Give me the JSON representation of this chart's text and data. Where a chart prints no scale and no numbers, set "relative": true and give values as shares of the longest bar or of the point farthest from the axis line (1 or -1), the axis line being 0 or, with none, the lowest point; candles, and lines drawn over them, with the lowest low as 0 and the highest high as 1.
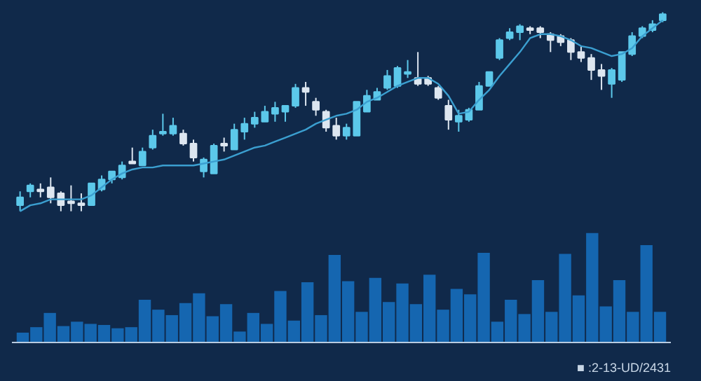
{
  "chart_data": [
    {
      "type": "candlestick",
      "relative": true,
      "categories": [
        null,
        null,
        null,
        null,
        null,
        null,
        null,
        null,
        null,
        null,
        null,
        null,
        null,
        null,
        null,
        null,
        null,
        null,
        null,
        null,
        null,
        null,
        null,
        null,
        null,
        null,
        null,
        null,
        null,
        null,
        null,
        null,
        null,
        null,
        null,
        null,
        null,
        null,
        null,
        null,
        null,
        null,
        null,
        null,
        null,
        null,
        null,
        null,
        null,
        null,
        null,
        null,
        null,
        null,
        null,
        null,
        null,
        null,
        null,
        null,
        null,
        null,
        null,
        null
      ],
      "ohlc": [
        [
          0.03,
          0.1,
          0.0,
          0.07
        ],
        [
          0.1,
          0.14,
          0.07,
          0.13
        ],
        [
          0.11,
          0.14,
          0.07,
          0.1
        ],
        [
          0.12,
          0.17,
          0.04,
          0.07
        ],
        [
          0.09,
          0.1,
          0.0,
          0.03
        ],
        [
          0.05,
          0.13,
          0.0,
          0.04
        ],
        [
          0.04,
          0.09,
          0.0,
          0.03
        ],
        [
          0.03,
          0.14,
          0.03,
          0.14
        ],
        [
          0.11,
          0.18,
          0.1,
          0.16
        ],
        [
          0.16,
          0.2,
          0.14,
          0.2
        ],
        [
          0.17,
          0.25,
          0.16,
          0.23
        ],
        [
          0.25,
          0.32,
          0.24,
          0.24
        ],
        [
          0.23,
          0.32,
          0.23,
          0.3
        ],
        [
          0.32,
          0.41,
          0.31,
          0.38
        ],
        [
          0.39,
          0.49,
          0.38,
          0.4
        ],
        [
          0.39,
          0.47,
          0.38,
          0.43
        ],
        [
          0.39,
          0.41,
          0.33,
          0.34
        ],
        [
          0.34,
          0.36,
          0.25,
          0.27
        ],
        [
          0.2,
          0.27,
          0.17,
          0.26
        ],
        [
          0.19,
          0.34,
          0.19,
          0.33
        ],
        [
          0.34,
          0.37,
          0.3,
          0.33
        ],
        [
          0.31,
          0.44,
          0.31,
          0.41
        ],
        [
          0.4,
          0.47,
          0.36,
          0.44
        ],
        [
          0.44,
          0.5,
          0.42,
          0.47
        ],
        [
          0.45,
          0.53,
          0.45,
          0.5
        ],
        [
          0.49,
          0.55,
          0.45,
          0.52
        ],
        [
          0.5,
          0.53,
          0.45,
          0.53
        ],
        [
          0.53,
          0.64,
          0.52,
          0.62
        ],
        [
          0.62,
          0.65,
          0.53,
          0.6
        ],
        [
          0.55,
          0.57,
          0.48,
          0.51
        ],
        [
          0.5,
          0.51,
          0.4,
          0.42
        ],
        [
          0.43,
          0.47,
          0.36,
          0.38
        ],
        [
          0.38,
          0.44,
          0.36,
          0.42
        ],
        [
          0.38,
          0.55,
          0.38,
          0.55
        ],
        [
          0.5,
          0.61,
          0.5,
          0.58
        ],
        [
          0.56,
          0.62,
          0.56,
          0.6
        ],
        [
          0.62,
          0.71,
          0.61,
          0.68
        ],
        [
          0.63,
          0.73,
          0.62,
          0.72
        ],
        [
          0.69,
          0.76,
          0.67,
          0.7
        ],
        [
          0.67,
          0.8,
          0.63,
          0.64
        ],
        [
          0.67,
          0.68,
          0.63,
          0.64
        ],
        [
          0.62,
          0.63,
          0.56,
          0.57
        ],
        [
          0.53,
          0.56,
          0.41,
          0.46
        ],
        [
          0.45,
          0.51,
          0.4,
          0.48
        ],
        [
          0.46,
          0.52,
          0.45,
          0.51
        ],
        [
          0.51,
          0.65,
          0.51,
          0.63
        ],
        [
          0.63,
          0.7,
          0.63,
          0.7
        ],
        [
          0.77,
          0.87,
          0.76,
          0.86
        ],
        [
          0.87,
          0.92,
          0.86,
          0.9
        ],
        [
          0.9,
          0.94,
          0.86,
          0.93
        ],
        [
          0.92,
          0.93,
          0.89,
          0.91
        ],
        [
          0.92,
          0.93,
          0.87,
          0.9
        ],
        [
          0.89,
          0.9,
          0.8,
          0.86
        ],
        [
          0.88,
          0.89,
          0.83,
          0.85
        ],
        [
          0.86,
          0.87,
          0.76,
          0.8
        ],
        [
          0.8,
          0.83,
          0.75,
          0.77
        ],
        [
          0.77,
          0.79,
          0.66,
          0.71
        ],
        [
          0.71,
          0.74,
          0.61,
          0.68
        ],
        [
          0.64,
          0.72,
          0.57,
          0.71
        ],
        [
          0.66,
          0.8,
          0.65,
          0.8
        ],
        [
          0.79,
          0.9,
          0.78,
          0.88
        ],
        [
          0.88,
          0.93,
          0.87,
          0.92
        ],
        [
          0.91,
          0.96,
          0.9,
          0.94
        ],
        [
          0.96,
          1.0,
          0.95,
          0.99
        ]
      ],
      "colors": [
        "#5cc8ea",
        "#5cc8ea",
        "#dde6f0",
        "#dde6f0",
        "#dde6f0",
        "#dde6f0",
        "#dde6f0",
        "#5cc8ea",
        "#5cc8ea",
        "#5cc8ea",
        "#5cc8ea",
        "#dde6f0",
        "#5cc8ea",
        "#5cc8ea",
        "#5cc8ea",
        "#5cc8ea",
        "#dde6f0",
        "#dde6f0",
        "#5cc8ea",
        "#5cc8ea",
        "#dde6f0",
        "#5cc8ea",
        "#5cc8ea",
        "#5cc8ea",
        "#5cc8ea",
        "#5cc8ea",
        "#5cc8ea",
        "#5cc8ea",
        "#dde6f0",
        "#dde6f0",
        "#dde6f0",
        "#dde6f0",
        "#5cc8ea",
        "#5cc8ea",
        "#5cc8ea",
        "#5cc8ea",
        "#5cc8ea",
        "#5cc8ea",
        "#5cc8ea",
        "#dde6f0",
        "#dde6f0",
        "#dde6f0",
        "#dde6f0",
        "#5cc8ea",
        "#5cc8ea",
        "#5cc8ea",
        "#5cc8ea",
        "#5cc8ea",
        "#5cc8ea",
        "#5cc8ea",
        "#dde6f0",
        "#dde6f0",
        "#dde6f0",
        "#dde6f0",
        "#dde6f0",
        "#dde6f0",
        "#dde6f0",
        "#dde6f0",
        "#5cc8ea",
        "#5cc8ea",
        "#5cc8ea",
        "#5cc8ea",
        "#5cc8ea",
        "#5cc8ea"
      ],
      "series": [
        {
          "type": "line",
          "color": "#3b9fd0",
          "values": [
            0.0,
            0.03,
            0.04,
            0.06,
            0.06,
            0.06,
            0.06,
            0.08,
            0.12,
            0.16,
            0.19,
            0.21,
            0.22,
            0.22,
            0.23,
            0.23,
            0.23,
            0.23,
            0.24,
            0.25,
            0.26,
            0.28,
            0.3,
            0.32,
            0.33,
            0.35,
            0.37,
            0.39,
            0.41,
            0.44,
            0.46,
            0.48,
            0.49,
            0.51,
            0.55,
            0.57,
            0.6,
            0.63,
            0.65,
            0.67,
            0.67,
            0.64,
            0.58,
            0.49,
            0.5,
            0.56,
            0.61,
            0.68,
            0.74,
            0.8,
            0.87,
            0.89,
            0.89,
            0.88,
            0.86,
            0.83,
            0.82,
            0.8,
            0.78,
            0.79,
            0.82,
            0.88,
            0.92,
            0.96
          ]
        }
      ]
    },
    {
      "type": "bar",
      "relative": true,
      "categories": [
        null,
        null,
        null,
        null,
        null,
        null,
        null,
        null,
        null,
        null,
        null,
        null,
        null,
        null,
        null,
        null,
        null,
        null,
        null,
        null,
        null,
        null,
        null,
        null,
        null,
        null,
        null,
        null,
        null,
        null,
        null,
        null,
        null,
        null,
        null,
        null,
        null,
        null,
        null,
        null,
        null,
        null,
        null,
        null,
        null,
        null,
        null,
        null
      ],
      "values": [
        0.09,
        0.14,
        0.27,
        0.15,
        0.19,
        0.17,
        0.16,
        0.13,
        0.14,
        0.39,
        0.3,
        0.25,
        0.36,
        0.45,
        0.24,
        0.35,
        0.1,
        0.27,
        0.17,
        0.47,
        0.2,
        0.55,
        0.25,
        0.8,
        0.56,
        0.28,
        0.59,
        0.37,
        0.54,
        0.35,
        0.62,
        0.3,
        0.49,
        0.44,
        0.82,
        0.19,
        0.39,
        0.26,
        0.57,
        0.28,
        0.81,
        0.43,
        1.0,
        0.33,
        0.57,
        0.28,
        0.89,
        0.28
      ],
      "color": "#1566b0",
      "annotations": [
        "■ :2-13-UD/2431"
      ]
    }
  ]
}
